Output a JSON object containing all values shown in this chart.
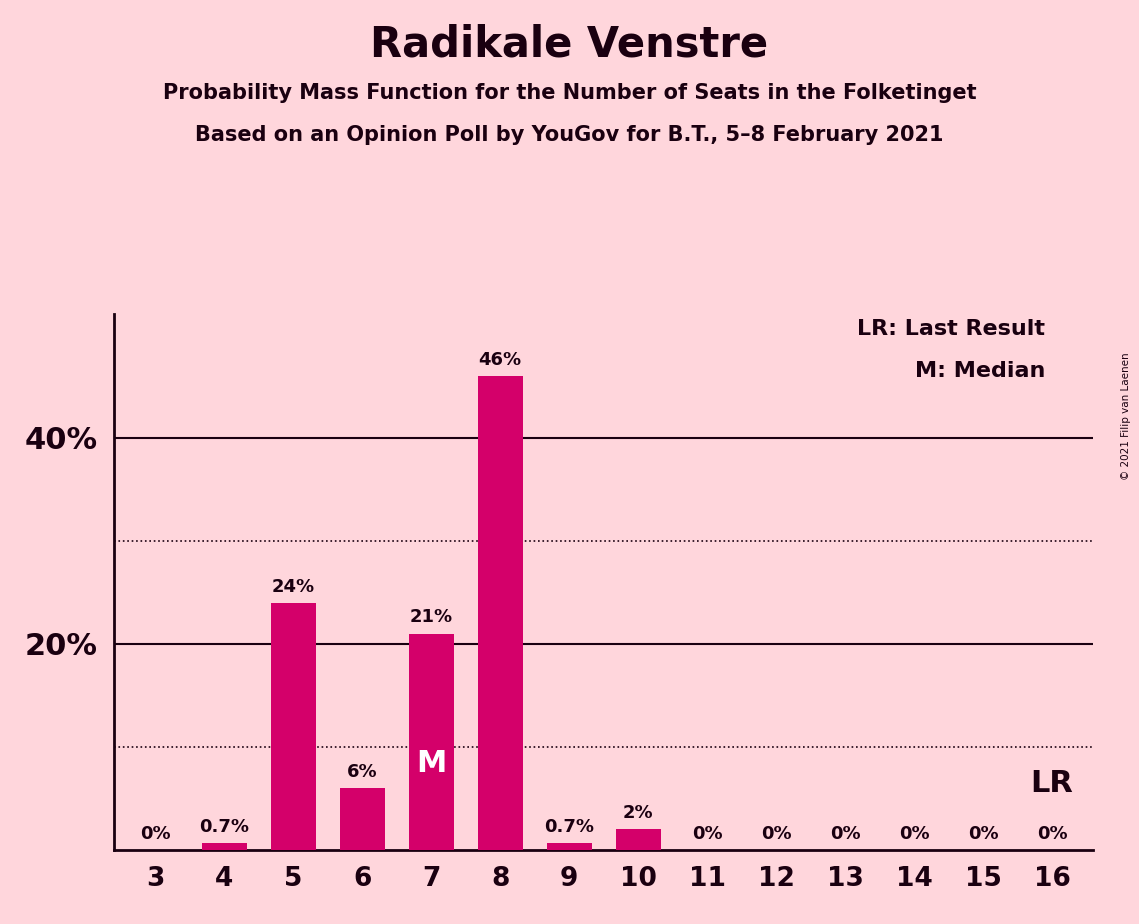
{
  "title": "Radikale Venstre",
  "subtitle1": "Probability Mass Function for the Number of Seats in the Folketinget",
  "subtitle2": "Based on an Opinion Poll by YouGov for B.T., 5–8 February 2021",
  "copyright": "© 2021 Filip van Laenen",
  "categories": [
    3,
    4,
    5,
    6,
    7,
    8,
    9,
    10,
    11,
    12,
    13,
    14,
    15,
    16
  ],
  "values": [
    0.0,
    0.7,
    24.0,
    6.0,
    21.0,
    46.0,
    0.7,
    2.0,
    0.0,
    0.0,
    0.0,
    0.0,
    0.0,
    0.0
  ],
  "labels": [
    "0%",
    "0.7%",
    "24%",
    "6%",
    "21%",
    "46%",
    "0.7%",
    "2%",
    "0%",
    "0%",
    "0%",
    "0%",
    "0%",
    "0%"
  ],
  "bar_color": "#D4006A",
  "background_color": "#FFD6DC",
  "text_color": "#1A0010",
  "median_seat": 7,
  "lr_seat": 16,
  "solid_lines": [
    20,
    40
  ],
  "dotted_lines": [
    10,
    30
  ],
  "ylim": [
    0,
    52
  ]
}
